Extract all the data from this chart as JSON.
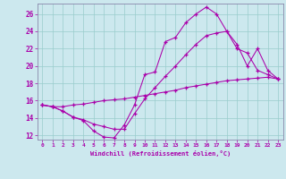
{
  "xlabel": "Windchill (Refroidissement éolien,°C)",
  "bg_color": "#cce8ee",
  "line_color": "#aa00aa",
  "grid_color": "#99cccc",
  "spine_color": "#8888aa",
  "xlim": [
    -0.5,
    23.5
  ],
  "ylim": [
    11.5,
    27.2
  ],
  "yticks": [
    12,
    14,
    16,
    18,
    20,
    22,
    24,
    26
  ],
  "xticks": [
    0,
    1,
    2,
    3,
    4,
    5,
    6,
    7,
    8,
    9,
    10,
    11,
    12,
    13,
    14,
    15,
    16,
    17,
    18,
    19,
    20,
    21,
    22,
    23
  ],
  "line1_x": [
    0,
    1,
    2,
    3,
    4,
    5,
    6,
    7,
    8,
    9,
    10,
    11,
    12,
    13,
    14,
    15,
    16,
    17,
    18,
    19,
    20,
    21,
    22,
    23
  ],
  "line1_y": [
    15.5,
    15.3,
    14.8,
    14.1,
    13.7,
    12.5,
    11.8,
    11.7,
    13.2,
    15.5,
    19.0,
    19.3,
    22.8,
    23.3,
    25.0,
    26.0,
    26.8,
    26.0,
    24.0,
    22.0,
    21.5,
    19.5,
    19.0,
    18.5
  ],
  "line2_x": [
    0,
    1,
    2,
    3,
    4,
    5,
    6,
    7,
    8,
    9,
    10,
    11,
    12,
    13,
    14,
    15,
    16,
    17,
    18,
    19,
    20,
    21,
    22,
    23
  ],
  "line2_y": [
    15.5,
    15.3,
    15.3,
    15.5,
    15.6,
    15.8,
    16.0,
    16.1,
    16.2,
    16.4,
    16.6,
    16.8,
    17.0,
    17.2,
    17.5,
    17.7,
    17.9,
    18.1,
    18.3,
    18.4,
    18.5,
    18.6,
    18.7,
    18.5
  ],
  "line3_x": [
    0,
    1,
    2,
    3,
    4,
    5,
    6,
    7,
    8,
    9,
    10,
    11,
    12,
    13,
    14,
    15,
    16,
    17,
    18,
    19,
    20,
    21,
    22,
    23
  ],
  "line3_y": [
    15.5,
    15.3,
    14.8,
    14.1,
    13.8,
    13.3,
    13.0,
    12.7,
    12.7,
    14.5,
    16.2,
    17.5,
    18.8,
    20.0,
    21.3,
    22.5,
    23.5,
    23.8,
    24.0,
    22.5,
    20.0,
    22.0,
    19.5,
    18.5
  ]
}
